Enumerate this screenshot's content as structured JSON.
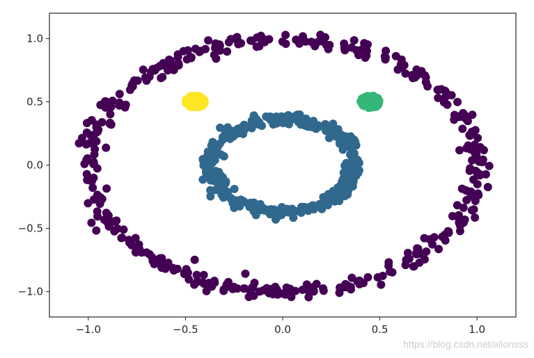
{
  "chart_data": {
    "type": "scatter",
    "xlim": [
      -1.2,
      1.2
    ],
    "ylim": [
      -1.2,
      1.2
    ],
    "xticks": [
      -1.0,
      -0.5,
      0.0,
      0.5,
      1.0
    ],
    "yticks": [
      -1.0,
      -0.5,
      0.0,
      0.5,
      1.0
    ],
    "xtick_labels": [
      "−1.0",
      "−0.5",
      "0.0",
      "0.5",
      "1.0"
    ],
    "ytick_labels": [
      "−1.0",
      "−0.5",
      "0.0",
      "0.5",
      "1.0"
    ],
    "grid": false,
    "title": "",
    "xlabel": "",
    "ylabel": "",
    "series": [
      {
        "shape": "ring",
        "color": "#440154",
        "cx": 0.0,
        "cy": 0.0,
        "r": 1.0,
        "noise": 0.05,
        "count": 420
      },
      {
        "shape": "ring",
        "color": "#31688e",
        "cx": 0.0,
        "cy": 0.0,
        "r": 0.37,
        "noise": 0.04,
        "count": 380
      },
      {
        "shape": "blob",
        "color": "#fde725",
        "cx": -0.45,
        "cy": 0.5,
        "r": 0.05,
        "count": 140
      },
      {
        "shape": "blob",
        "color": "#35b779",
        "cx": 0.45,
        "cy": 0.5,
        "r": 0.05,
        "count": 120
      }
    ]
  },
  "watermark": "https://blog.csdn.net/alionsss"
}
